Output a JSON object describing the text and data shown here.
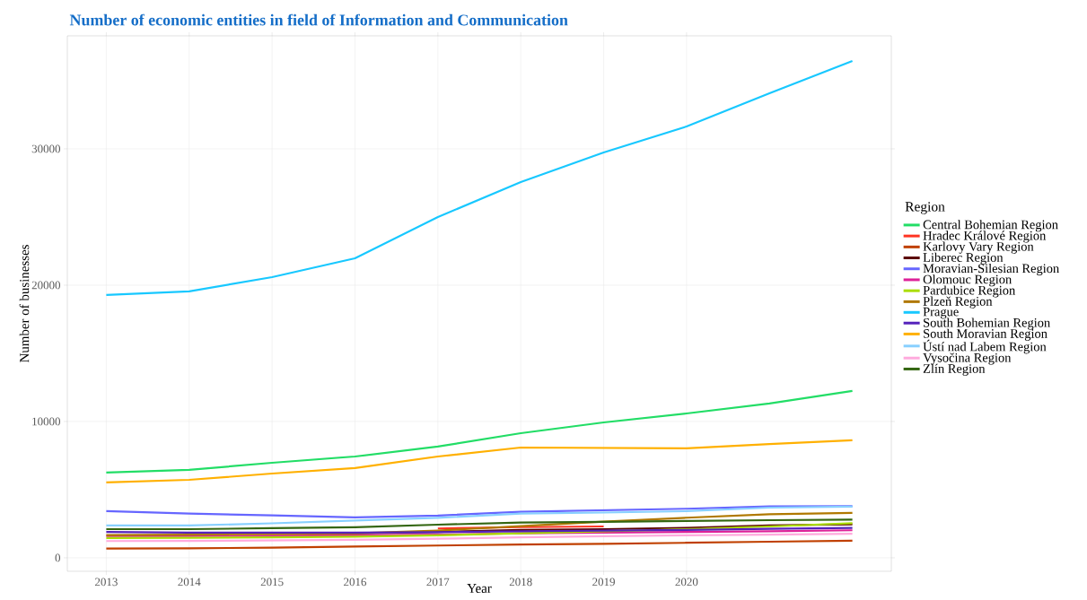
{
  "chart_data": {
    "type": "line",
    "title": "Number of economic entities in field of Information and Communication",
    "xlabel": "Year",
    "ylabel": "Number of businesses",
    "legend_title": "Region",
    "x": [
      2013,
      2014,
      2015,
      2016,
      2017,
      2018,
      2019,
      2020,
      2021,
      2022
    ],
    "xlim": [
      2012.53,
      2022.47
    ],
    "xticks": [
      2013,
      2014,
      2015,
      2016,
      2017,
      2018,
      2019,
      2020
    ],
    "ylim": [
      -990,
      38290
    ],
    "yticks": [
      0,
      10000,
      20000,
      30000
    ],
    "grid": true,
    "legend": "right",
    "series": [
      {
        "name": "Central Bohemian Region",
        "color": "#22dd66",
        "values": [
          6250,
          6450,
          6970,
          7430,
          8160,
          9140,
          9930,
          10590,
          11320,
          12240
        ]
      },
      {
        "name": "Hradec Králové Region",
        "color": "#ff3322",
        "values": [
          null,
          null,
          null,
          null,
          2150,
          2250,
          2300,
          null,
          null,
          null
        ]
      },
      {
        "name": "Karlovy Vary Region",
        "color": "#c04000",
        "values": [
          680,
          690,
          750,
          830,
          900,
          970,
          1030,
          1100,
          1180,
          1250
        ]
      },
      {
        "name": "Liberec Region",
        "color": "#5a0000",
        "values": [
          null,
          null,
          1780,
          1800,
          1900,
          2050,
          2100,
          2200,
          2380,
          2450
        ]
      },
      {
        "name": "Moravian-Silesian Region",
        "color": "#6666ff",
        "values": [
          3420,
          3250,
          3110,
          2960,
          3100,
          3380,
          3490,
          3600,
          3770,
          3790
        ]
      },
      {
        "name": "Olomouc Region",
        "color": "#dd2299",
        "values": [
          1600,
          1600,
          1620,
          1650,
          1700,
          1800,
          1850,
          1900,
          1950,
          2020
        ]
      },
      {
        "name": "Pardubice Region",
        "color": "#aadd00",
        "values": [
          1450,
          1470,
          1500,
          1550,
          1650,
          1800,
          1950,
          2100,
          2300,
          2540
        ]
      },
      {
        "name": "Plzeň Region",
        "color": "#b07800",
        "values": [
          1670,
          1700,
          1750,
          1800,
          2000,
          2320,
          2650,
          2940,
          3200,
          3290
        ]
      },
      {
        "name": "Prague",
        "color": "#18c8ff",
        "values": [
          19280,
          19540,
          20590,
          21970,
          25000,
          27570,
          29740,
          31640,
          34080,
          36450
        ]
      },
      {
        "name": "South Bohemian Region",
        "color": "#5522bb",
        "values": [
          1890,
          1850,
          1850,
          1850,
          1880,
          1950,
          2000,
          2050,
          2120,
          2190
        ]
      },
      {
        "name": "South Moravian Region",
        "color": "#ffb000",
        "values": [
          5530,
          5720,
          6180,
          6580,
          7430,
          8090,
          8060,
          8030,
          8350,
          8620
        ]
      },
      {
        "name": "Ústí nad Labem Region",
        "color": "#88d0ff",
        "values": [
          2370,
          2370,
          2530,
          2730,
          2930,
          3240,
          3320,
          3420,
          3680,
          3750
        ]
      },
      {
        "name": "Vysočina Region",
        "color": "#ffaadd",
        "values": [
          1230,
          1240,
          1280,
          1320,
          1400,
          1500,
          1580,
          1650,
          1700,
          1760
        ]
      },
      {
        "name": "Zlín Region",
        "color": "#336611",
        "values": [
          2100,
          2100,
          2170,
          2240,
          2430,
          2590,
          2630,
          2700,
          2760,
          2800
        ]
      }
    ]
  }
}
